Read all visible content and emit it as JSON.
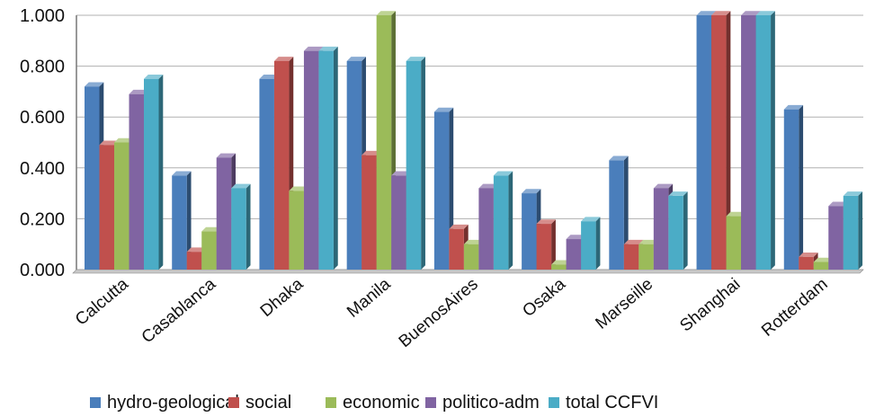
{
  "chart_data": {
    "type": "bar",
    "title": "",
    "xlabel": "",
    "ylabel": "",
    "ylim": [
      0,
      1
    ],
    "yticks": [
      "0.000",
      "0.200",
      "0.400",
      "0.600",
      "0.800",
      "1.000"
    ],
    "categories": [
      "Calcutta",
      "Casablanca",
      "Dhaka",
      "Manila",
      "BuenosAires",
      "Osaka",
      "Marseille",
      "Shanghai",
      "Rotterdam"
    ],
    "series": [
      {
        "name": "hydro-geological",
        "color": "#4a7ebb",
        "values": [
          0.72,
          0.37,
          0.75,
          0.82,
          0.62,
          0.3,
          0.43,
          1.0,
          0.63
        ]
      },
      {
        "name": "social",
        "color": "#c0504d",
        "values": [
          0.49,
          0.07,
          0.82,
          0.45,
          0.16,
          0.18,
          0.1,
          1.0,
          0.05
        ]
      },
      {
        "name": "economic",
        "color": "#9bbb59",
        "values": [
          0.5,
          0.15,
          0.31,
          1.0,
          0.1,
          0.02,
          0.1,
          0.21,
          0.03
        ]
      },
      {
        "name": "politico-adm",
        "color": "#8064a2",
        "values": [
          0.69,
          0.44,
          0.86,
          0.37,
          0.32,
          0.12,
          0.32,
          1.0,
          0.25
        ]
      },
      {
        "name": "total CCFVI",
        "color": "#4bacc6",
        "values": [
          0.75,
          0.32,
          0.86,
          0.82,
          0.37,
          0.19,
          0.29,
          1.0,
          0.29
        ]
      }
    ],
    "grid": true,
    "legend": "bottom"
  }
}
